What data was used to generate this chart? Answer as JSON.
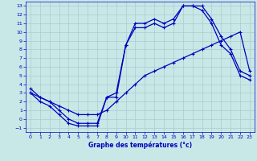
{
  "xlabel": "Graphe des températures (°c)",
  "xlim": [
    -0.5,
    23.5
  ],
  "ylim": [
    -1.5,
    13.5
  ],
  "xticks": [
    0,
    1,
    2,
    3,
    4,
    5,
    6,
    7,
    8,
    9,
    10,
    11,
    12,
    13,
    14,
    15,
    16,
    17,
    18,
    19,
    20,
    21,
    22,
    23
  ],
  "yticks": [
    -1,
    0,
    1,
    2,
    3,
    4,
    5,
    6,
    7,
    8,
    9,
    10,
    11,
    12,
    13
  ],
  "background_color": "#c8e8e8",
  "line_color": "#0000bb",
  "grid_color": "#aacccc",
  "line1_x": [
    0,
    1,
    2,
    3,
    4,
    5,
    6,
    7,
    8,
    9,
    10,
    11,
    12,
    13,
    14,
    15,
    16,
    17,
    18,
    19,
    20,
    21,
    22,
    23
  ],
  "line1_y": [
    3,
    2.5,
    2,
    1,
    0,
    -0.5,
    -0.5,
    -0.5,
    2.5,
    3,
    8.5,
    11,
    11,
    11.5,
    11,
    11.5,
    13,
    13,
    13,
    11.5,
    9.5,
    8,
    5.5,
    5
  ],
  "line2_x": [
    0,
    1,
    2,
    3,
    4,
    5,
    6,
    7,
    8,
    9,
    10,
    11,
    12,
    13,
    14,
    15,
    16,
    17,
    18,
    19,
    20,
    21,
    22,
    23
  ],
  "line2_y": [
    3,
    2,
    1.5,
    0.5,
    -0.5,
    -0.8,
    -0.8,
    -0.8,
    2.5,
    2.5,
    8.5,
    10.5,
    10.5,
    11,
    10.5,
    11,
    13,
    13,
    12.5,
    11,
    8.5,
    7.5,
    5,
    4.5
  ],
  "line3_x": [
    0,
    1,
    2,
    3,
    4,
    5,
    6,
    7,
    8,
    9,
    10,
    11,
    12,
    13,
    14,
    15,
    16,
    17,
    18,
    19,
    20,
    21,
    22,
    23
  ],
  "line3_y": [
    3.5,
    2.5,
    2,
    1.5,
    1,
    0.5,
    0.5,
    0.5,
    1,
    2,
    3,
    4,
    5,
    5.5,
    6,
    6.5,
    7,
    7.5,
    8,
    8.5,
    9,
    9.5,
    10,
    5.5
  ]
}
